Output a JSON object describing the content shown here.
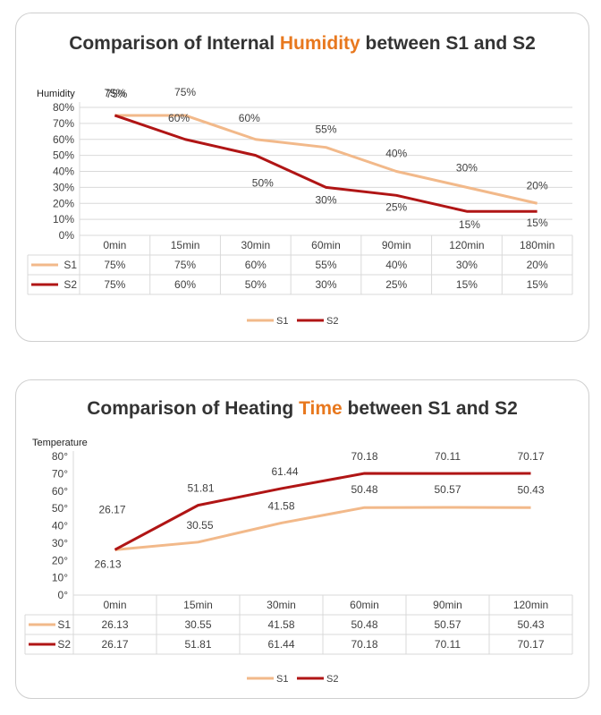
{
  "chart_data": [
    {
      "type": "line",
      "title": {
        "before": "Comparison of Internal ",
        "highlight": "Humidity",
        "after": " between S1 and S2"
      },
      "ylabel": "Humidity",
      "categories": [
        "0min",
        "15min",
        "30min",
        "60min",
        "90min",
        "120min",
        "180min"
      ],
      "yticks": [
        "0%",
        "10%",
        "20%",
        "30%",
        "40%",
        "50%",
        "60%",
        "70%",
        "80%"
      ],
      "ylim": [
        0,
        80
      ],
      "grid": true,
      "legend_position": "bottom",
      "series": [
        {
          "name": "S1",
          "color": "#f2b98a",
          "values": [
            75,
            75,
            60,
            55,
            40,
            30,
            20
          ],
          "labels": [
            "75%",
            "75%",
            "60%",
            "55%",
            "40%",
            "30%",
            "20%"
          ]
        },
        {
          "name": "S2",
          "color": "#b01515",
          "values": [
            75,
            60,
            50,
            30,
            25,
            15,
            15
          ],
          "labels": [
            "75%",
            "60%",
            "50%",
            "30%",
            "25%",
            "15%",
            "15%"
          ]
        }
      ]
    },
    {
      "type": "line",
      "title": {
        "before": "Comparison of Heating ",
        "highlight": "Time",
        "after": " between S1 and S2"
      },
      "ylabel": "Temperature",
      "categories": [
        "0min",
        "15min",
        "30min",
        "60min",
        "90min",
        "120min"
      ],
      "yticks": [
        "0°",
        "10°",
        "20°",
        "30°",
        "40°",
        "50°",
        "60°",
        "70°",
        "80°"
      ],
      "ylim": [
        0,
        80
      ],
      "grid": false,
      "legend_position": "bottom",
      "series": [
        {
          "name": "S1",
          "color": "#f2b98a",
          "values": [
            26.13,
            30.55,
            41.58,
            50.48,
            50.57,
            50.43
          ],
          "labels": [
            "26.13",
            "30.55",
            "41.58",
            "50.48",
            "50.57",
            "50.43"
          ]
        },
        {
          "name": "S2",
          "color": "#b01515",
          "values": [
            26.17,
            51.81,
            61.44,
            70.18,
            70.11,
            70.17
          ],
          "labels": [
            "26.17",
            "51.81",
            "61.44",
            "70.18",
            "70.11",
            "70.17"
          ]
        }
      ]
    }
  ]
}
